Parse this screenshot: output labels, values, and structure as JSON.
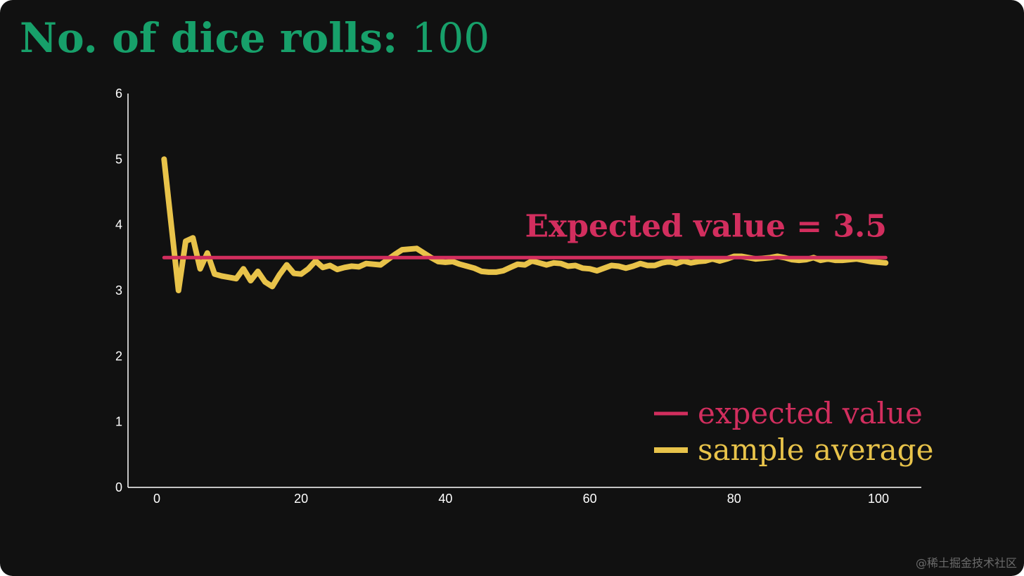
{
  "header": {
    "title_label": "No. of dice rolls:",
    "title_value": "100"
  },
  "colors": {
    "background": "#111111",
    "title": "#17a06a",
    "expected": "#d22e5e",
    "sample": "#e8c34a",
    "axis": "#ffffff"
  },
  "watermark": "@稀土掘金技术社区",
  "chart_data": {
    "type": "line",
    "title": "No. of dice rolls: 100",
    "xlim": [
      -4,
      106
    ],
    "ylim": [
      0,
      6
    ],
    "x_ticks": [
      0,
      20,
      40,
      60,
      80,
      100
    ],
    "y_ticks": [
      0,
      1,
      2,
      3,
      4,
      5,
      6
    ],
    "grid": false,
    "legend_position": "bottom-right",
    "legend": [
      {
        "label": "expected value",
        "color": "#d22e5e"
      },
      {
        "label": "sample average",
        "color": "#e8c34a"
      }
    ],
    "annotation": {
      "text": "Expected value = 3.5",
      "x": 100,
      "y": 3.82,
      "color": "#d22e5e"
    },
    "series": [
      {
        "name": "expected value",
        "color": "#d22e5e",
        "x": [
          1,
          101
        ],
        "y": [
          3.5,
          3.5
        ]
      },
      {
        "name": "sample average",
        "color": "#e8c34a",
        "x": [
          1,
          2,
          3,
          4,
          5,
          6,
          7,
          8,
          9,
          10,
          11,
          12,
          13,
          14,
          15,
          16,
          17,
          18,
          19,
          20,
          21,
          22,
          23,
          24,
          25,
          26,
          27,
          28,
          29,
          30,
          31,
          32,
          33,
          34,
          35,
          36,
          37,
          38,
          39,
          40,
          41,
          42,
          43,
          44,
          45,
          46,
          47,
          48,
          49,
          50,
          51,
          52,
          53,
          54,
          55,
          56,
          57,
          58,
          59,
          60,
          61,
          62,
          63,
          64,
          65,
          66,
          67,
          68,
          69,
          70,
          71,
          72,
          73,
          74,
          75,
          76,
          77,
          78,
          79,
          80,
          81,
          82,
          83,
          84,
          85,
          86,
          87,
          88,
          89,
          90,
          91,
          92,
          93,
          94,
          95,
          96,
          97,
          98,
          99,
          100,
          101
        ],
        "y": [
          5.0,
          4.0,
          3.0,
          3.75,
          3.8,
          3.33,
          3.57,
          3.25,
          3.22,
          3.2,
          3.18,
          3.33,
          3.15,
          3.29,
          3.13,
          3.06,
          3.24,
          3.39,
          3.26,
          3.25,
          3.33,
          3.45,
          3.35,
          3.38,
          3.32,
          3.35,
          3.37,
          3.36,
          3.41,
          3.4,
          3.39,
          3.47,
          3.55,
          3.62,
          3.63,
          3.64,
          3.57,
          3.5,
          3.44,
          3.43,
          3.44,
          3.4,
          3.37,
          3.34,
          3.29,
          3.28,
          3.28,
          3.3,
          3.35,
          3.4,
          3.39,
          3.45,
          3.42,
          3.39,
          3.42,
          3.41,
          3.37,
          3.38,
          3.34,
          3.33,
          3.3,
          3.34,
          3.38,
          3.37,
          3.34,
          3.37,
          3.41,
          3.38,
          3.38,
          3.42,
          3.44,
          3.41,
          3.45,
          3.42,
          3.44,
          3.45,
          3.48,
          3.45,
          3.48,
          3.52,
          3.52,
          3.5,
          3.48,
          3.49,
          3.5,
          3.52,
          3.5,
          3.47,
          3.46,
          3.47,
          3.5,
          3.46,
          3.48,
          3.46,
          3.46,
          3.47,
          3.48,
          3.46,
          3.44,
          3.43,
          3.42
        ]
      }
    ]
  }
}
